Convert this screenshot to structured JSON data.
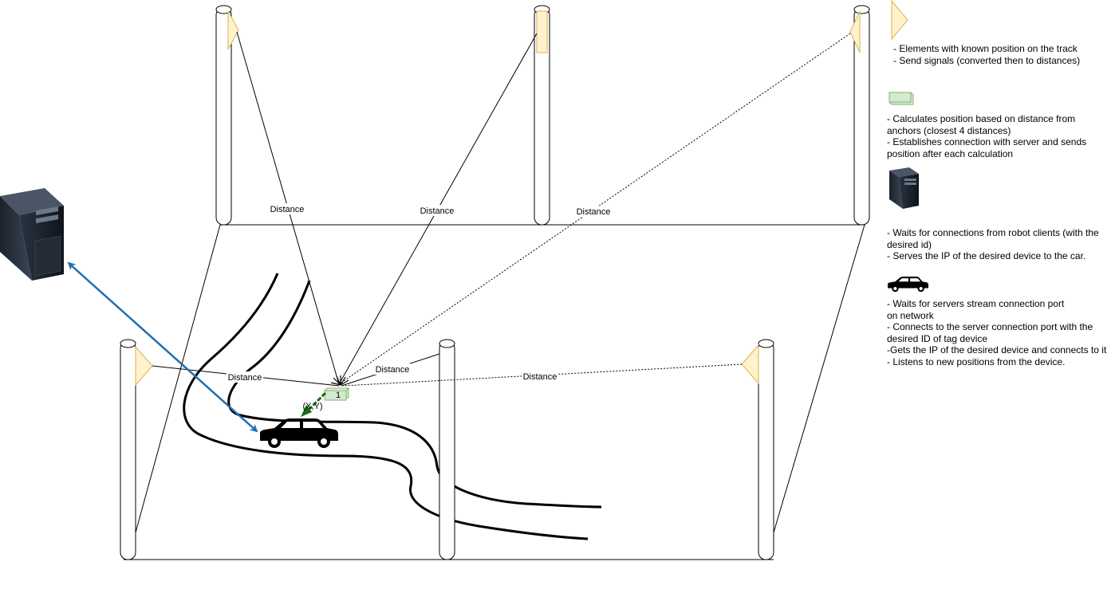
{
  "diagram": {
    "distance_label": "Distance",
    "tag_number": "1",
    "position_label": "(X,Y)"
  },
  "legend": {
    "anchor": [
      "- Elements with known position on the track",
      "- Send signals (converted then to distances)"
    ],
    "tag": [
      "- Calculates position based on distance from",
      "anchors (closest 4 distances)",
      "- Establishes connection with server and sends",
      "position after each calculation"
    ],
    "server": [
      "- Waits for connections from robot clients (with the",
      "desired id)",
      "- Serves the IP of the desired device to the car."
    ],
    "car": [
      "- Waits for servers stream connection port",
      "on network",
      "- Connects to the server connection port with the",
      "desired ID of tag device",
      "-Gets the IP of the desired device and connects to it",
      "- Listens to new positions from the device."
    ]
  },
  "colors": {
    "anchor_fill": "#fff2cc",
    "anchor_stroke": "#d6b656",
    "tag_fill": "#d5e8d4",
    "tag_stroke": "#82b366",
    "connection_arrow": "#1f6fb0",
    "position_arrow": "#1a6b1a"
  }
}
